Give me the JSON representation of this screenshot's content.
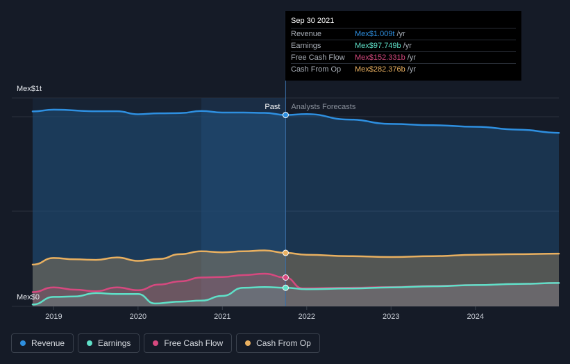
{
  "colors": {
    "revenue": "#2e8fe0",
    "earnings": "#5fe0c8",
    "fcf": "#d6497f",
    "cfo": "#e9b060",
    "background": "#151b27"
  },
  "chart_data": {
    "type": "line",
    "title": "",
    "xlabel": "",
    "ylabel": "",
    "y_axis_labels": [
      "Mex$1t",
      "Mex$0"
    ],
    "ylim": [
      0,
      1.1
    ],
    "y_unit": "trillion MXN",
    "x_tick_labels": [
      "2019",
      "2020",
      "2021",
      "2022",
      "2023",
      "2024"
    ],
    "x_ticks": [
      2019,
      2020,
      2021,
      2022,
      2023,
      2024
    ],
    "xlim": [
      2018.75,
      2024.99
    ],
    "past_label": "Past",
    "forecast_label": "Analysts Forecasts",
    "divider_x": 2021.75,
    "highlight_band": [
      2020.75,
      2021.75
    ],
    "grid": true,
    "legend_position": "bottom-left",
    "series": [
      {
        "name": "Revenue",
        "color_key": "revenue",
        "x": [
          2018.75,
          2019.0,
          2019.5,
          2019.75,
          2020.0,
          2020.25,
          2020.5,
          2020.75,
          2021.0,
          2021.25,
          2021.5,
          2021.75,
          2022.0,
          2022.5,
          2023.0,
          2023.5,
          2024.0,
          2024.5,
          2024.99
        ],
        "y": [
          1.028,
          1.037,
          1.029,
          1.029,
          1.013,
          1.018,
          1.019,
          1.03,
          1.022,
          1.022,
          1.02,
          1.009,
          1.014,
          0.985,
          0.962,
          0.955,
          0.947,
          0.932,
          0.915
        ]
      },
      {
        "name": "Earnings",
        "color_key": "earnings",
        "x": [
          2018.75,
          2019.0,
          2019.25,
          2019.5,
          2019.75,
          2020.0,
          2020.2,
          2020.5,
          2020.75,
          2021.0,
          2021.25,
          2021.5,
          2021.75,
          2022.0,
          2022.5,
          2023.0,
          2023.5,
          2024.0,
          2024.5,
          2024.99
        ],
        "y": [
          0.01,
          0.05,
          0.052,
          0.07,
          0.065,
          0.065,
          0.015,
          0.025,
          0.03,
          0.055,
          0.098,
          0.102,
          0.098,
          0.09,
          0.094,
          0.1,
          0.106,
          0.112,
          0.118,
          0.123
        ]
      },
      {
        "name": "Free Cash Flow",
        "color_key": "fcf",
        "x": [
          2018.75,
          2019.0,
          2019.25,
          2019.5,
          2019.75,
          2020.0,
          2020.25,
          2020.5,
          2020.75,
          2021.0,
          2021.25,
          2021.5,
          2021.75,
          2021.95,
          2022.5,
          2023.0,
          2023.5,
          2024.0,
          2024.5,
          2024.99
        ],
        "y": [
          0.075,
          0.1,
          0.088,
          0.08,
          0.1,
          0.085,
          0.115,
          0.132,
          0.152,
          0.155,
          0.165,
          0.172,
          0.152,
          0.095,
          0.098,
          0.102,
          0.108,
          0.112,
          0.118,
          0.123
        ]
      },
      {
        "name": "Cash From Op",
        "color_key": "cfo",
        "x": [
          2018.75,
          2019.0,
          2019.25,
          2019.5,
          2019.75,
          2020.0,
          2020.25,
          2020.5,
          2020.75,
          2021.0,
          2021.25,
          2021.5,
          2021.75,
          2022.0,
          2022.5,
          2023.0,
          2023.5,
          2024.0,
          2024.5,
          2024.99
        ],
        "y": [
          0.22,
          0.255,
          0.248,
          0.245,
          0.258,
          0.24,
          0.25,
          0.275,
          0.29,
          0.285,
          0.29,
          0.295,
          0.282,
          0.272,
          0.265,
          0.26,
          0.265,
          0.272,
          0.275,
          0.278
        ]
      }
    ]
  },
  "tooltip": {
    "date": "Sep 30 2021",
    "rows": [
      {
        "label": "Revenue",
        "value": "Mex$1.009t",
        "unit": "/yr",
        "color_key": "revenue"
      },
      {
        "label": "Earnings",
        "value": "Mex$97.749b",
        "unit": "/yr",
        "color_key": "earnings"
      },
      {
        "label": "Free Cash Flow",
        "value": "Mex$152.331b",
        "unit": "/yr",
        "color_key": "fcf"
      },
      {
        "label": "Cash From Op",
        "value": "Mex$282.376b",
        "unit": "/yr",
        "color_key": "cfo"
      }
    ]
  },
  "legend": [
    {
      "label": "Revenue",
      "color_key": "revenue"
    },
    {
      "label": "Earnings",
      "color_key": "earnings"
    },
    {
      "label": "Free Cash Flow",
      "color_key": "fcf"
    },
    {
      "label": "Cash From Op",
      "color_key": "cfo"
    }
  ]
}
